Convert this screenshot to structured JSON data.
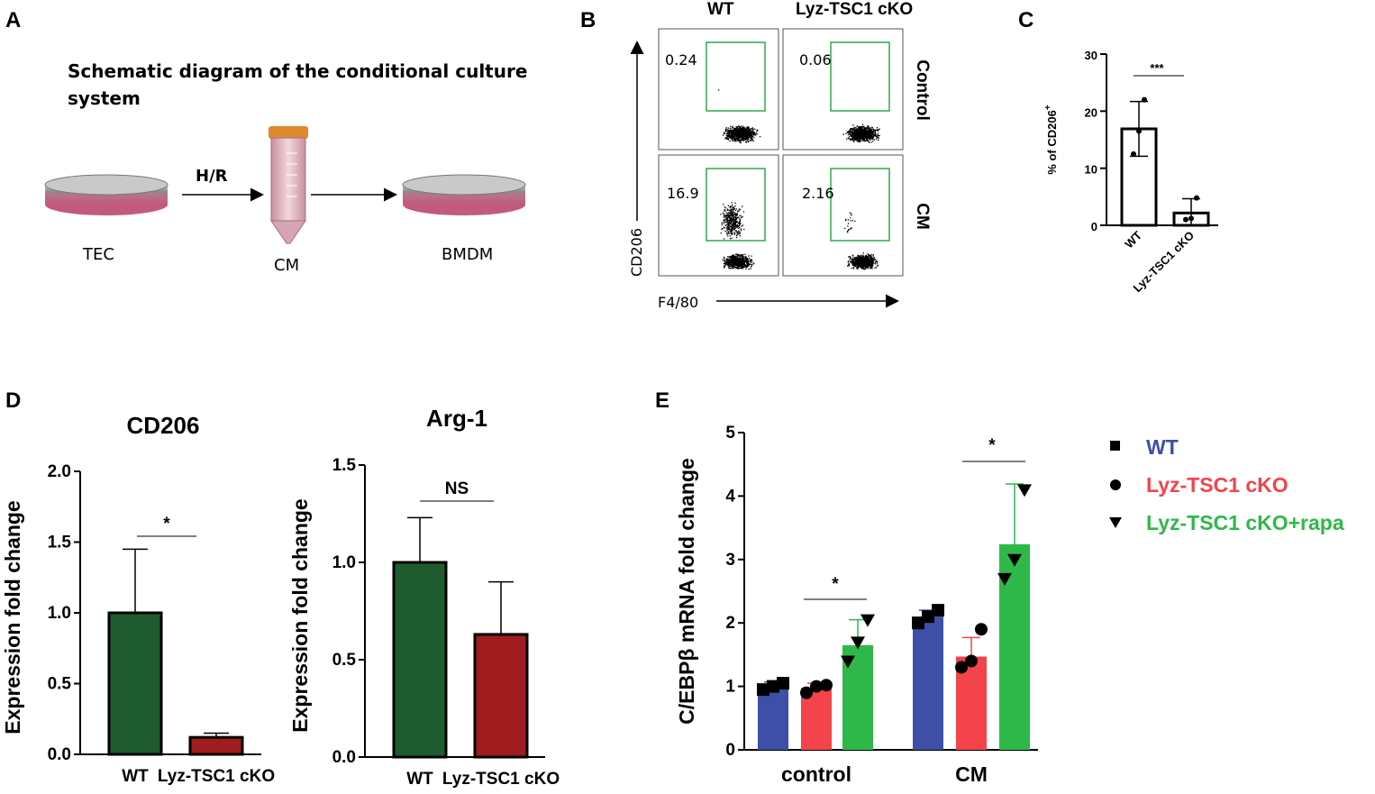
{
  "panels": {
    "a": "A",
    "b": "B",
    "c": "C",
    "d": "D",
    "e": "E"
  },
  "schematic": {
    "title_line1": "Schematic diagram of the conditional culture",
    "title_line2": "system",
    "step_label": "H/R",
    "tec_label": "TEC",
    "cm_label": "CM",
    "bmdm_label": "BMDM"
  },
  "flow": {
    "col_wt": "WT",
    "col_cko": "Lyz-TSC1 cKO",
    "row_control": "Control",
    "row_cm": "CM",
    "gate_values": {
      "wt_control": "0.24",
      "cko_control": "0.06",
      "wt_cm": "16.9",
      "cko_cm": "2.16"
    },
    "y_axis": "CD206",
    "x_axis": "F4/80"
  },
  "colors": {
    "dark_green": "#1e5c30",
    "dark_red": "#a01c1e",
    "wt_blue": "#3d4fa6",
    "cko_red": "#f2444a",
    "rapa_green": "#2fb84a",
    "gate_green": "#2fa84a"
  },
  "chart_data": [
    {
      "id": "C",
      "type": "bar",
      "title": "",
      "ylabel": "% of CD206+",
      "ylabel_main": "% of CD206",
      "ylabel_sup": "+",
      "categories": [
        "WT",
        "Lyz-TSC1 cKO"
      ],
      "values": [
        16.9,
        2.16
      ],
      "errors": [
        4.8,
        2.5
      ],
      "points": [
        [
          12.5,
          16.5,
          22.0
        ],
        [
          1.0,
          1.2,
          4.8
        ]
      ],
      "ylim": [
        0,
        30
      ],
      "yticks": [
        "0",
        "10",
        "20",
        "30"
      ],
      "significance": "***"
    },
    {
      "id": "D1",
      "type": "bar",
      "title": "CD206",
      "ylabel": "Expression fold change",
      "categories": [
        "WT",
        "Lyz-TSC1 cKO"
      ],
      "values": [
        1.0,
        0.12
      ],
      "errors": [
        0.45,
        0.03
      ],
      "ylim": [
        0,
        2.0
      ],
      "yticks": [
        "0.0",
        "0.5",
        "1.0",
        "1.5",
        "2.0"
      ],
      "significance": "*"
    },
    {
      "id": "D2",
      "type": "bar",
      "title": "Arg-1",
      "ylabel": "Expression fold change",
      "categories": [
        "WT",
        "Lyz-TSC1 cKO"
      ],
      "values": [
        1.0,
        0.63
      ],
      "errors": [
        0.23,
        0.27
      ],
      "ylim": [
        0,
        1.5
      ],
      "yticks": [
        "0.0",
        "0.5",
        "1.0",
        "1.5"
      ],
      "significance": "NS"
    },
    {
      "id": "E",
      "type": "bar",
      "title": "",
      "ylabel": "C/EBPβ mRNA fold change",
      "categories": [
        "control",
        "CM"
      ],
      "ylim": [
        0,
        5
      ],
      "yticks": [
        "0",
        "1",
        "2",
        "3",
        "4",
        "5"
      ],
      "series": [
        {
          "name": "WT",
          "values": [
            1.0,
            2.1
          ],
          "errors": [
            0.07,
            0.1
          ],
          "points": [
            [
              0.95,
              1.0,
              1.05
            ],
            [
              2.0,
              2.1,
              2.2
            ]
          ]
        },
        {
          "name": "Lyz-TSC1 cKO",
          "values": [
            0.98,
            1.47
          ],
          "errors": [
            0.07,
            0.3
          ],
          "points": [
            [
              0.9,
              1.0,
              1.02
            ],
            [
              1.3,
              1.4,
              1.9
            ]
          ]
        },
        {
          "name": "Lyz-TSC1 cKO+rapa",
          "values": [
            1.65,
            3.24
          ],
          "errors": [
            0.4,
            0.95
          ],
          "points": [
            [
              1.4,
              1.7,
              2.05
            ],
            [
              2.7,
              3.0,
              4.1
            ]
          ]
        }
      ],
      "significance": [
        "*",
        "*"
      ]
    }
  ]
}
